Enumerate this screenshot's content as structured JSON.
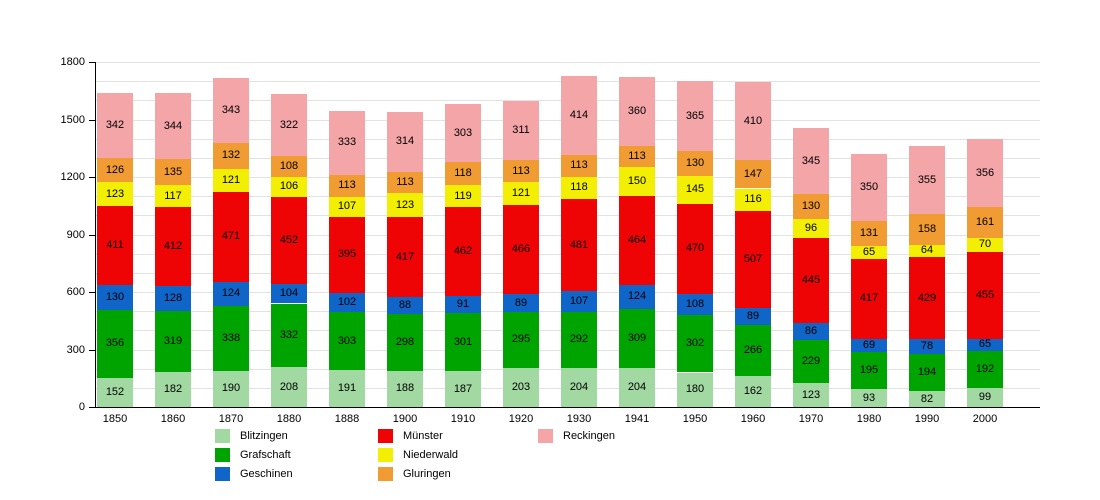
{
  "chart_data": {
    "type": "bar",
    "stacked": true,
    "title": "",
    "xlabel": "",
    "ylabel": "",
    "categories": [
      "1850",
      "1860",
      "1870",
      "1880",
      "1888",
      "1900",
      "1910",
      "1920",
      "1930",
      "1941",
      "1950",
      "1960",
      "1970",
      "1980",
      "1990",
      "2000"
    ],
    "series": [
      {
        "name": "Blitzingen",
        "color": "#a2d8a2",
        "values": [
          152,
          182,
          190,
          208,
          191,
          188,
          187,
          203,
          204,
          204,
          180,
          162,
          123,
          93,
          82,
          99
        ]
      },
      {
        "name": "Grafschaft",
        "color": "#00a400",
        "values": [
          356,
          319,
          338,
          332,
          303,
          298,
          301,
          295,
          292,
          309,
          302,
          266,
          229,
          195,
          194,
          192
        ]
      },
      {
        "name": "Geschinen",
        "color": "#1065c9",
        "values": [
          130,
          128,
          124,
          104,
          102,
          88,
          91,
          89,
          107,
          124,
          108,
          89,
          86,
          69,
          78,
          65
        ]
      },
      {
        "name": "Münster",
        "color": "#ee0404",
        "values": [
          411,
          412,
          471,
          452,
          395,
          417,
          462,
          466,
          481,
          464,
          470,
          507,
          445,
          417,
          429,
          455
        ]
      },
      {
        "name": "Niederwald",
        "color": "#f2ee04",
        "values": [
          123,
          117,
          121,
          106,
          107,
          123,
          119,
          121,
          118,
          150,
          145,
          116,
          96,
          65,
          64,
          70
        ]
      },
      {
        "name": "Gluringen",
        "color": "#f19b33",
        "values": [
          126,
          135,
          132,
          108,
          113,
          113,
          118,
          113,
          113,
          113,
          130,
          147,
          130,
          131,
          158,
          161
        ]
      },
      {
        "name": "Reckingen",
        "color": "#f4a5a8",
        "values": [
          342,
          344,
          343,
          322,
          333,
          314,
          303,
          311,
          414,
          360,
          365,
          410,
          345,
          350,
          355,
          356
        ]
      }
    ],
    "ylim": [
      0,
      1800
    ],
    "y_major_ticks": [
      0,
      300,
      600,
      900,
      1200,
      1500,
      1800
    ],
    "y_minor_step": 100,
    "grid": true,
    "value_labels": true,
    "legend_position": "bottom"
  }
}
